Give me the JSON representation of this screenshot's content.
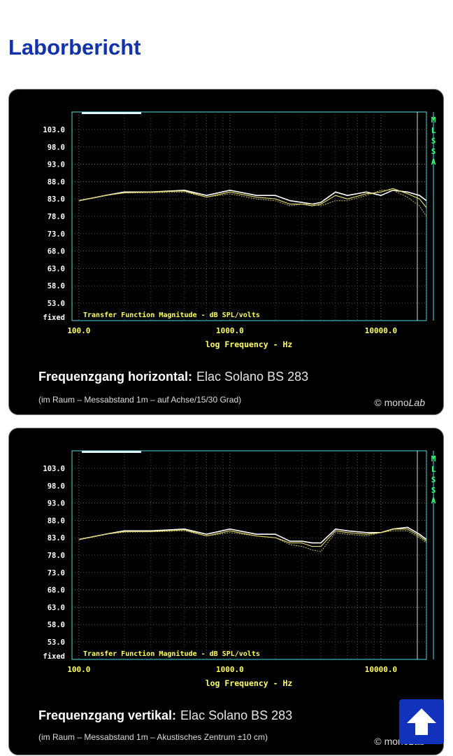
{
  "page": {
    "title": "Laborbericht"
  },
  "colors": {
    "title": "#1133aa",
    "frame": "#3fb7bf",
    "axis_text": "#ffff66",
    "mlssa": "#33ff66",
    "series_main": "#ffffff",
    "series_off1": "#e8e070",
    "series_off2": "#cdbb55",
    "scroll_button": "#1133bb"
  },
  "common": {
    "y_ticks": [
      "103.0",
      "98.0",
      "93.0",
      "88.0",
      "83.0",
      "78.0",
      "73.0",
      "68.0",
      "63.0",
      "58.0",
      "53.0"
    ],
    "y_bottom_label": "fixed",
    "x_ticks": [
      "100.0",
      "1000.0",
      "10000.0"
    ],
    "xlabel": "log Frequency - Hz",
    "inner_label": "Transfer Function Magnitude - dB SPL/volts",
    "side_label": "MLSSA",
    "copyright": "© mono",
    "copyright_brand": "Lab"
  },
  "charts": [
    {
      "caption_title": "Frequenzgang horizontal:",
      "caption_model": "Elac Solano BS 283",
      "caption_sub": "(im Raum – Messabstand 1m – auf Achse/15/30 Grad)"
    },
    {
      "caption_title": "Frequenzgang vertikal:",
      "caption_model": "Elac Solano BS 283",
      "caption_sub": "(im Raum – Messabstand 1m – Akustisches Zentrum ±10 cm)"
    }
  ],
  "chart_data": [
    {
      "type": "line",
      "title": "Frequenzgang horizontal: Elac Solano BS 283",
      "xlabel": "log Frequency - Hz",
      "ylabel": "Transfer Function Magnitude - dB SPL/volts",
      "xscale": "log",
      "xlim": [
        90,
        20000
      ],
      "ylim": [
        50,
        108
      ],
      "grid": true,
      "x": [
        100,
        150,
        200,
        300,
        500,
        700,
        1000,
        1500,
        2000,
        2500,
        3000,
        3500,
        4000,
        5000,
        6000,
        8000,
        10000,
        12000,
        15000,
        18000,
        20000
      ],
      "series": [
        {
          "values": [
            82.5,
            84,
            85,
            85,
            85.5,
            84,
            85.5,
            84,
            84,
            82.5,
            82,
            81.5,
            82,
            85,
            84,
            85,
            84,
            85.5,
            85,
            84,
            82.5
          ]
        },
        {
          "values": [
            82.5,
            84,
            84.8,
            85,
            85.3,
            83.5,
            85,
            83.5,
            83,
            81.5,
            81.5,
            81,
            81.5,
            84,
            83,
            84.5,
            85,
            86,
            84.5,
            83,
            80.5
          ]
        },
        {
          "values": [
            82.5,
            84,
            84.7,
            84.8,
            85,
            83.5,
            84.5,
            83,
            82.5,
            81,
            81.5,
            81.5,
            81,
            82.5,
            82.5,
            84,
            85.5,
            85.5,
            83.5,
            81,
            78
          ]
        }
      ]
    },
    {
      "type": "line",
      "title": "Frequenzgang vertikal: Elac Solano BS 283",
      "xlabel": "log Frequency - Hz",
      "ylabel": "Transfer Function Magnitude - dB SPL/volts",
      "xscale": "log",
      "xlim": [
        90,
        20000
      ],
      "ylim": [
        50,
        108
      ],
      "grid": true,
      "x": [
        100,
        150,
        200,
        300,
        500,
        700,
        1000,
        1500,
        2000,
        2500,
        3000,
        3500,
        4000,
        5000,
        6000,
        8000,
        10000,
        12000,
        15000,
        18000,
        20000
      ],
      "series": [
        {
          "values": [
            82.5,
            84,
            85,
            85,
            85.5,
            84,
            85.5,
            84,
            84,
            82,
            82,
            81.5,
            81.5,
            85.5,
            85,
            84.5,
            84.5,
            85.5,
            86,
            84,
            82.5
          ]
        },
        {
          "values": [
            82.5,
            84,
            84.8,
            84.8,
            85.3,
            83.5,
            85,
            83.5,
            83,
            81.5,
            81.5,
            80.5,
            80.5,
            85,
            84.5,
            84,
            84.5,
            85.5,
            85.5,
            83.5,
            82
          ]
        },
        {
          "values": [
            82.5,
            84,
            84.6,
            84.7,
            85,
            83.5,
            84.5,
            83.5,
            83,
            81,
            80.5,
            79.5,
            79,
            84.5,
            84,
            83.5,
            84.5,
            85,
            85,
            83,
            81.5
          ]
        }
      ]
    }
  ],
  "scroll_top": {
    "icon": "arrow-up-icon"
  }
}
